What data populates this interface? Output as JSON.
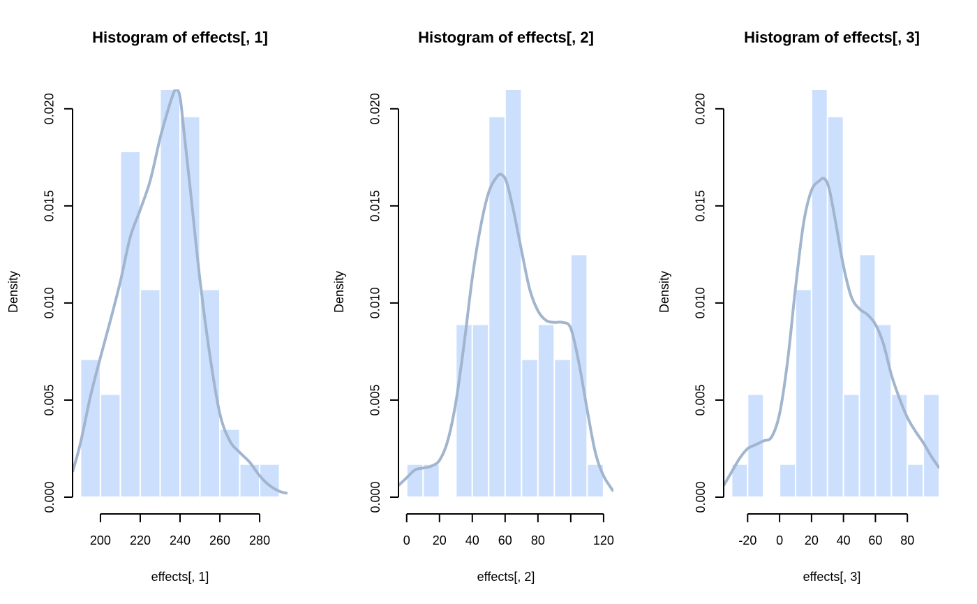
{
  "colors": {
    "bar_fill": "#cce0fe",
    "bar_edge": "#ffffff",
    "density_line": "#a2b5ce",
    "axis": "#000000"
  },
  "chart_data": [
    {
      "type": "bar",
      "title": "Histogram of effects[, 1]",
      "xlabel": "effects[, 1]",
      "ylabel": "Density",
      "xlim": [
        186,
        294
      ],
      "ylim": [
        0,
        0.021
      ],
      "x_ticks": [
        200,
        220,
        240,
        260,
        280
      ],
      "y_ticks": [
        "0.000",
        "0.005",
        "0.010",
        "0.015",
        "0.020"
      ],
      "bins": [
        190,
        200,
        210,
        220,
        230,
        240,
        250,
        260,
        270,
        280,
        290
      ],
      "densities": [
        0.0071,
        0.0053,
        0.0178,
        0.0107,
        0.0214,
        0.0196,
        0.0107,
        0.0035,
        0.0017,
        0.0017
      ],
      "density_curve": {
        "x": [
          186,
          190,
          195,
          200,
          205,
          210,
          215,
          220,
          225,
          230,
          233,
          236,
          238,
          240,
          242,
          245,
          250,
          255,
          260,
          265,
          270,
          275,
          280,
          285,
          290,
          294
        ],
        "y": [
          0.0013,
          0.0028,
          0.0052,
          0.0072,
          0.0091,
          0.0111,
          0.0134,
          0.0148,
          0.0163,
          0.0185,
          0.0196,
          0.0206,
          0.021,
          0.0206,
          0.0188,
          0.016,
          0.0112,
          0.0073,
          0.0043,
          0.0029,
          0.0023,
          0.0018,
          0.0011,
          0.0006,
          0.0003,
          0.0002
        ]
      }
    },
    {
      "type": "bar",
      "title": "Histogram of effects[, 2]",
      "xlabel": "effects[, 2]",
      "ylabel": "Density",
      "xlim": [
        -5,
        126
      ],
      "ylim": [
        0,
        0.021
      ],
      "x_ticks": [
        0,
        20,
        40,
        60,
        80,
        100,
        120
      ],
      "x_tick_labels": [
        "0",
        "20",
        "40",
        "60",
        "80",
        "",
        "120"
      ],
      "y_ticks": [
        "0.000",
        "0.005",
        "0.010",
        "0.015",
        "0.020"
      ],
      "bins": [
        0,
        10,
        20,
        30,
        40,
        50,
        60,
        70,
        80,
        90,
        100,
        110,
        120
      ],
      "densities": [
        0.0017,
        0.0017,
        0,
        0.0089,
        0.0089,
        0.0196,
        0.0214,
        0.0071,
        0.0089,
        0.0071,
        0.0125,
        0.0017
      ],
      "density_curve": {
        "x": [
          -5,
          0,
          5,
          10,
          15,
          20,
          25,
          30,
          35,
          40,
          45,
          50,
          55,
          58,
          61,
          65,
          70,
          75,
          80,
          85,
          90,
          95,
          100,
          105,
          110,
          115,
          120,
          126
        ],
        "y": [
          0.0006,
          0.001,
          0.0014,
          0.0015,
          0.0016,
          0.0019,
          0.0029,
          0.0049,
          0.0079,
          0.0113,
          0.0139,
          0.0157,
          0.0165,
          0.0166,
          0.0162,
          0.0148,
          0.0127,
          0.0107,
          0.0096,
          0.0091,
          0.009,
          0.009,
          0.0087,
          0.0069,
          0.0045,
          0.0023,
          0.0011,
          0.0003
        ]
      }
    },
    {
      "type": "bar",
      "title": "Histogram of effects[, 3]",
      "xlabel": "effects[, 3]",
      "ylabel": "Density",
      "xlim": [
        -35,
        100
      ],
      "ylim": [
        0,
        0.021
      ],
      "x_ticks": [
        -20,
        0,
        20,
        40,
        60,
        80
      ],
      "y_ticks": [
        "0.000",
        "0.005",
        "0.010",
        "0.015",
        "0.020"
      ],
      "bins": [
        -30,
        -20,
        -10,
        0,
        10,
        20,
        30,
        40,
        50,
        60,
        70,
        80,
        90,
        100
      ],
      "densities": [
        0.0017,
        0.0053,
        0,
        0.0017,
        0.0107,
        0.0214,
        0.0196,
        0.0053,
        0.0125,
        0.0089,
        0.0053,
        0.0017,
        0.0053
      ],
      "density_curve": {
        "x": [
          -35,
          -30,
          -25,
          -20,
          -15,
          -10,
          -5,
          0,
          5,
          10,
          15,
          20,
          25,
          28,
          31,
          35,
          40,
          45,
          50,
          55,
          60,
          65,
          70,
          75,
          80,
          85,
          90,
          95,
          100
        ],
        "y": [
          0.0006,
          0.0013,
          0.002,
          0.0025,
          0.0027,
          0.0029,
          0.0031,
          0.0043,
          0.007,
          0.0108,
          0.0141,
          0.0158,
          0.0163,
          0.0164,
          0.0159,
          0.0142,
          0.0119,
          0.0103,
          0.0097,
          0.0094,
          0.0089,
          0.0079,
          0.0063,
          0.0051,
          0.0041,
          0.0034,
          0.0028,
          0.0021,
          0.0015
        ]
      }
    }
  ]
}
